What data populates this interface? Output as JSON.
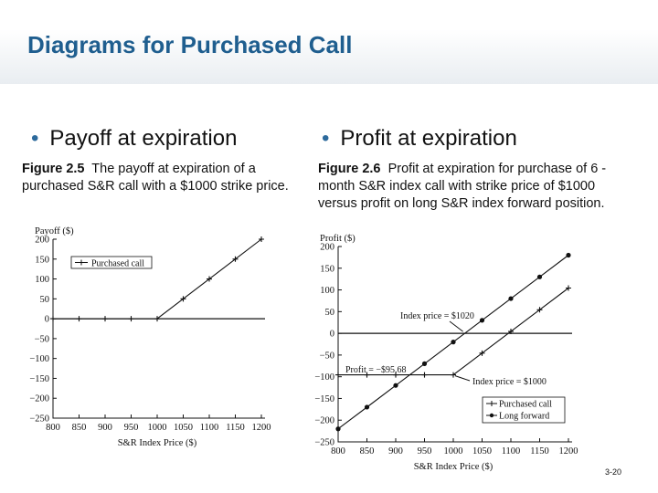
{
  "slide": {
    "title": "Diagrams for Purchased Call",
    "left_bullet": "Payoff at expiration",
    "right_bullet": "Profit at expiration",
    "left_caption_fig": "Figure 2.5",
    "left_caption_text": "The payoff at expiration of a purchased S&R call with a $1000 strike price.",
    "right_caption_fig": "Figure 2.6",
    "right_caption_text": "Profit at expiration for purchase of 6 -month S&R index call with strike price of $1000 versus profit on long S&R index forward position.",
    "slide_number": "3-20"
  },
  "chart_data": [
    {
      "type": "line",
      "ylabel": "Payoff ($)",
      "xlabel": "S&R Index Price ($)",
      "xlim": [
        800,
        1200
      ],
      "ylim": [
        -250,
        200
      ],
      "x_ticks": [
        "800",
        "850",
        "900",
        "950",
        "1000",
        "1050",
        "1100",
        "1150",
        "1200"
      ],
      "y_ticks": [
        "200",
        "150",
        "100",
        "50",
        "0",
        "−50",
        "−100",
        "−150",
        "−200",
        "−250"
      ],
      "series": [
        {
          "name": "Purchased call",
          "marker": "+",
          "x": [
            800,
            850,
            900,
            950,
            1000,
            1050,
            1100,
            1150,
            1200
          ],
          "y": [
            0,
            0,
            0,
            0,
            0,
            50,
            100,
            150,
            200
          ]
        }
      ],
      "legend": "top-left"
    },
    {
      "type": "line",
      "ylabel": "Profit ($)",
      "xlabel": "S&R Index Price ($)",
      "xlim": [
        800,
        1200
      ],
      "ylim": [
        -250,
        200
      ],
      "x_ticks": [
        "800",
        "850",
        "900",
        "950",
        "1000",
        "1050",
        "1100",
        "1150",
        "1200"
      ],
      "y_ticks": [
        "200",
        "150",
        "100",
        "50",
        "0",
        "−50",
        "−100",
        "−150",
        "−200",
        "−250"
      ],
      "series": [
        {
          "name": "Purchased call",
          "marker": "+",
          "x": [
            800,
            850,
            900,
            950,
            1000,
            1050,
            1100,
            1150,
            1200
          ],
          "y": [
            -95.68,
            -95.68,
            -95.68,
            -95.68,
            -95.68,
            -45.68,
            4.32,
            54.32,
            104.32
          ]
        },
        {
          "name": "Long forward",
          "marker": "dot",
          "x": [
            800,
            850,
            900,
            950,
            1000,
            1050,
            1100,
            1150,
            1200
          ],
          "y": [
            -220,
            -170,
            -120,
            -70,
            -20,
            30,
            80,
            130,
            180
          ]
        }
      ],
      "annotations": [
        {
          "text": "Index price = $1020",
          "x": 1020,
          "y": 0
        },
        {
          "text": "Profit = −$95.68",
          "x": 1000,
          "y": -95.68
        },
        {
          "text": "Index price = $1000",
          "x": 1000,
          "y": -95.68
        }
      ],
      "legend": "bottom-right"
    }
  ]
}
